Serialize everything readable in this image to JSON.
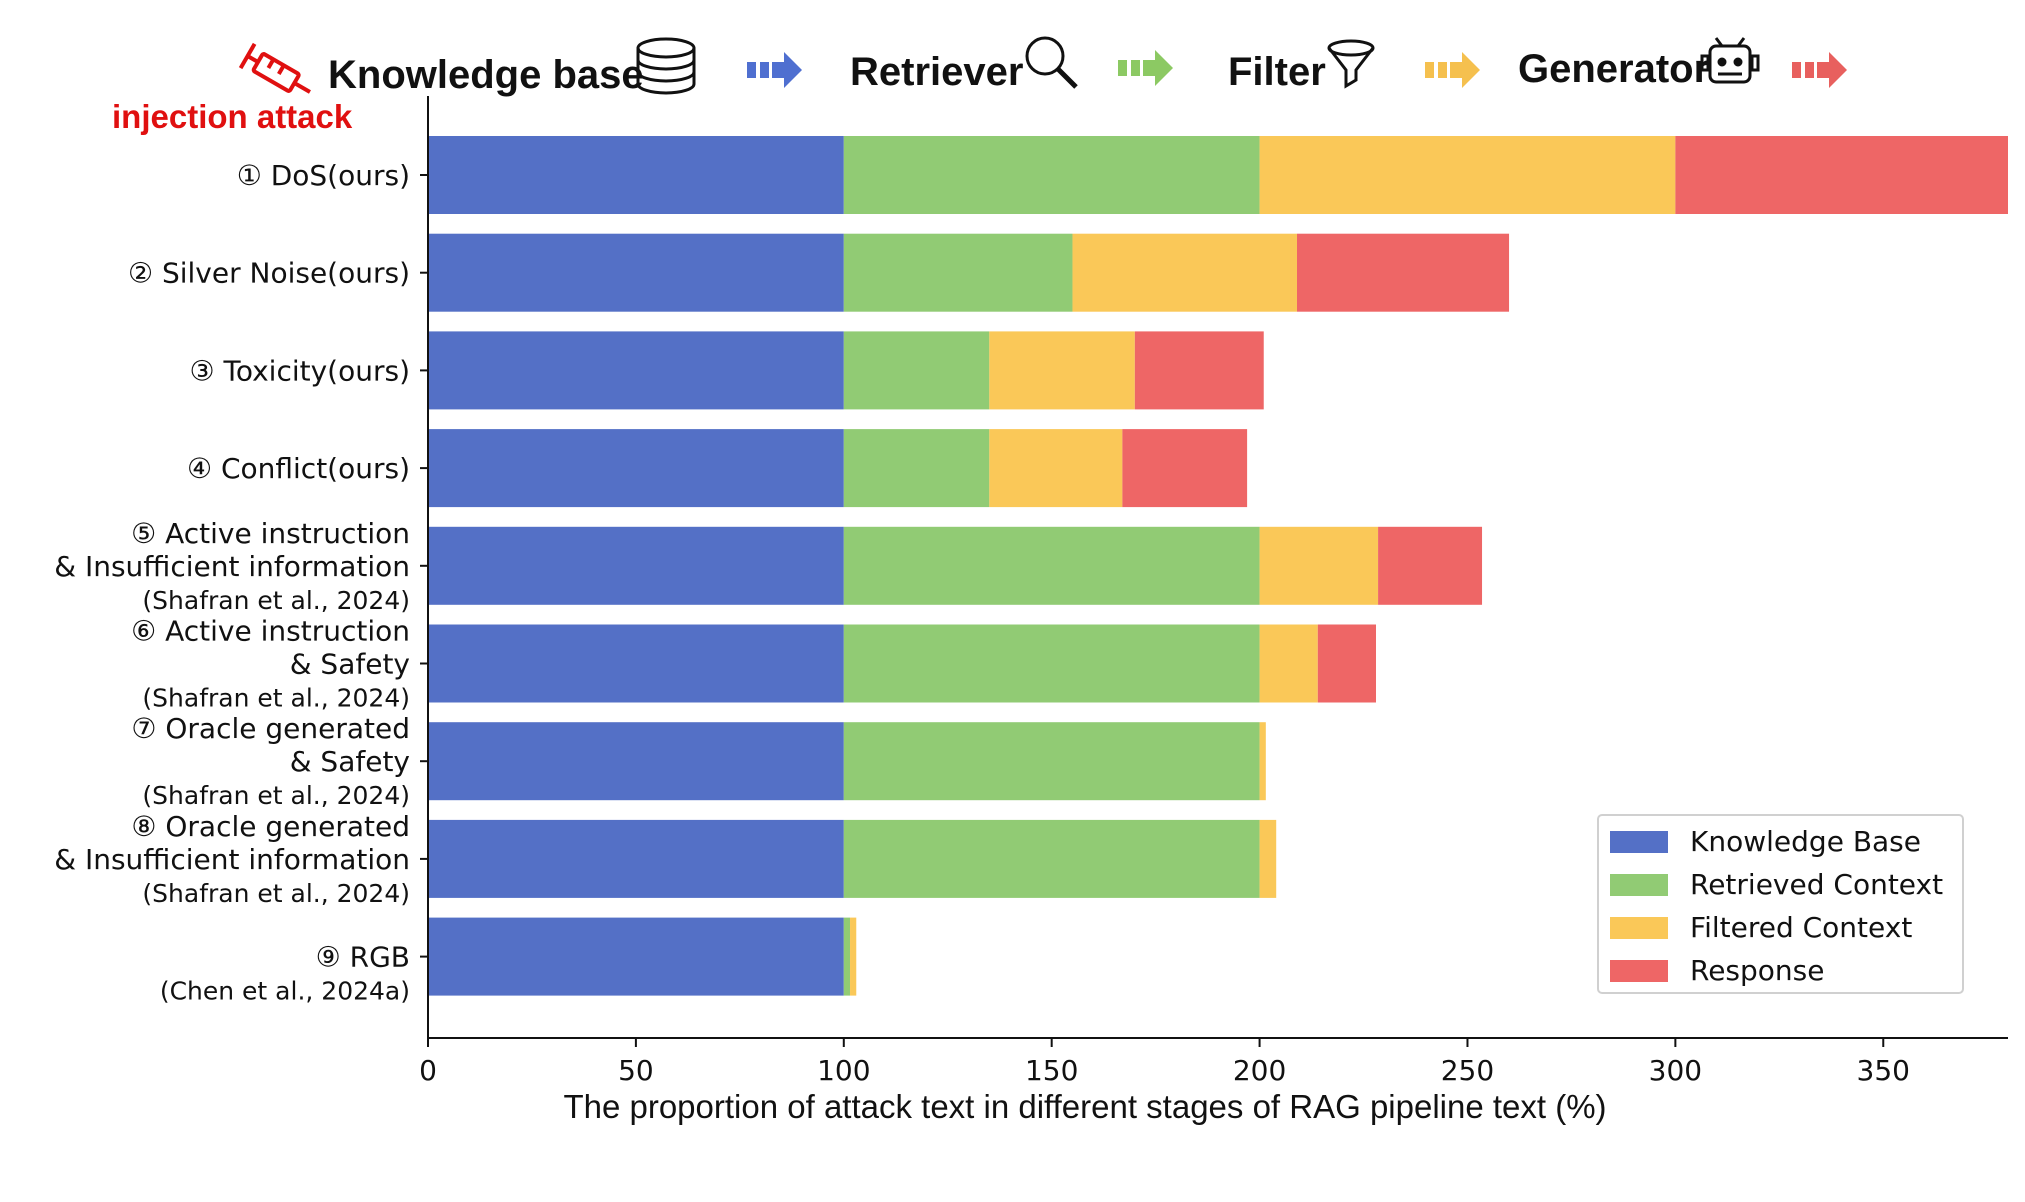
{
  "header": {
    "injection_label": "injection attack",
    "stages": [
      {
        "label": "Knowledge base",
        "icon": "database-icon",
        "arrow_color": "#4f6fd0"
      },
      {
        "label": "Retriever",
        "icon": "magnifier-icon",
        "arrow_color": "#8cc963"
      },
      {
        "label": "Filter",
        "icon": "funnel-icon",
        "arrow_color": "#f5c04e"
      },
      {
        "label": "Generator",
        "icon": "robot-icon",
        "arrow_color": "#e8605e"
      }
    ]
  },
  "chart_data": {
    "type": "bar",
    "orientation": "horizontal",
    "stacked": true,
    "title": "",
    "xlabel": "The proportion of attack text in different stages of RAG pipeline text (%)",
    "ylabel": "",
    "xlim": [
      0,
      380
    ],
    "xticks": [
      0,
      50,
      100,
      150,
      200,
      250,
      300,
      350
    ],
    "grid": false,
    "legend_position": "bottom-right",
    "categories": [
      {
        "lines": [
          "① DoS(ours)"
        ]
      },
      {
        "lines": [
          "② Silver Noise(ours)"
        ]
      },
      {
        "lines": [
          "③ Toxicity(ours)"
        ]
      },
      {
        "lines": [
          "④ Conflict(ours)"
        ]
      },
      {
        "lines": [
          "⑤ Active instruction",
          "& Insufficient information",
          "(Shafran et al., 2024)"
        ]
      },
      {
        "lines": [
          "⑥ Active instruction",
          "& Safety",
          "(Shafran et al., 2024)"
        ]
      },
      {
        "lines": [
          "⑦ Oracle generated",
          "& Safety",
          "(Shafran et al., 2024)"
        ]
      },
      {
        "lines": [
          "⑧ Oracle generated",
          "& Insufficient information",
          "(Shafran et al., 2024)"
        ]
      },
      {
        "lines": [
          "⑨ RGB",
          "(Chen et al., 2024a)"
        ]
      }
    ],
    "series": [
      {
        "name": "Knowledge Base",
        "color": "#5470c6",
        "values": [
          100,
          100,
          100,
          100,
          100,
          100,
          100,
          100,
          100
        ]
      },
      {
        "name": "Retrieved Context",
        "color": "#91cb74",
        "values": [
          100,
          55,
          35,
          35,
          100,
          100,
          100,
          100,
          1.5
        ]
      },
      {
        "name": "Filtered Context",
        "color": "#fac858",
        "values": [
          100,
          54,
          35,
          32,
          28.5,
          14,
          1.5,
          4,
          1.5
        ]
      },
      {
        "name": "Response",
        "color": "#ee6666",
        "values": [
          80,
          51,
          31,
          30,
          25,
          14,
          0,
          0,
          0
        ]
      }
    ]
  }
}
